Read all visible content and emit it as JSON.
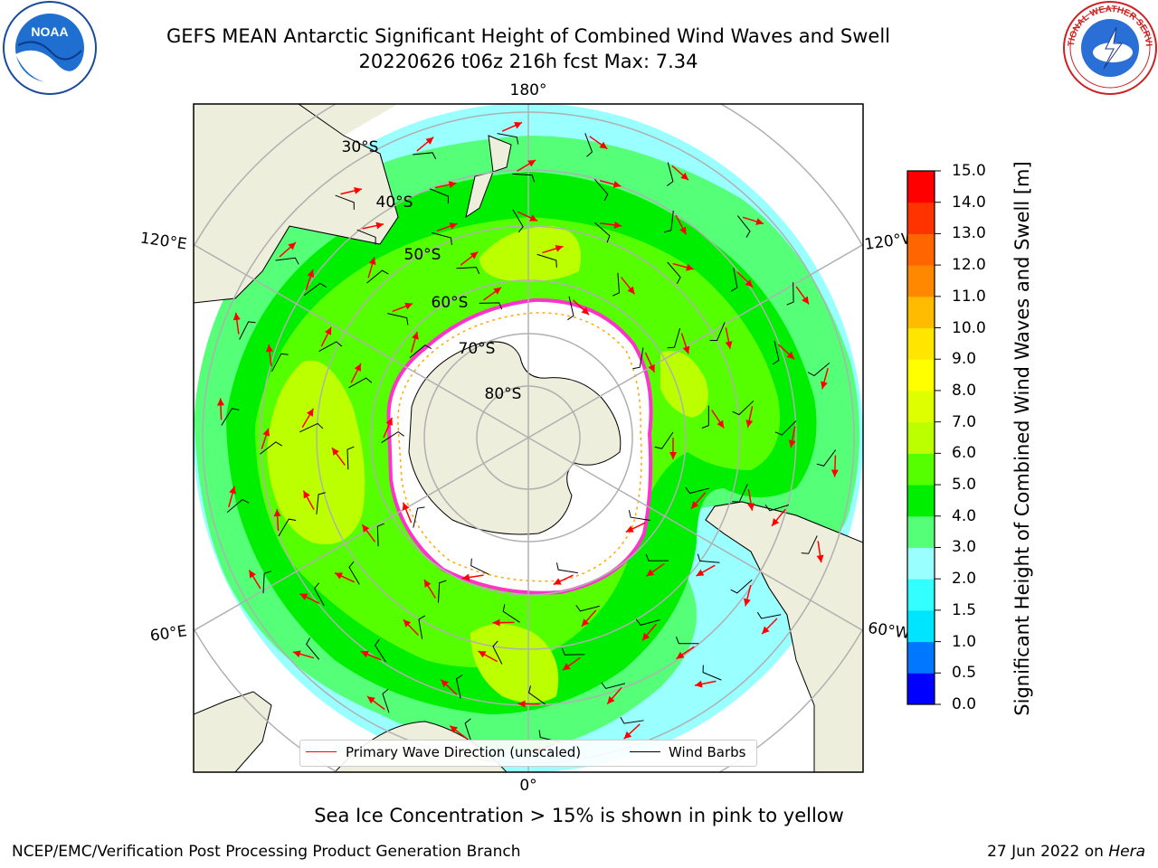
{
  "title_line1": "GEFS MEAN Antarctic Significant Height of Combined Wind Waves and Swell",
  "title_line2": "20220626 t06z 216h fcst   Max: 7.34",
  "logos": {
    "left": "noaa-logo",
    "right": "nws-logo",
    "left_text": "NOAA",
    "right_text": "NATIONAL WEATHER SERVICE"
  },
  "map": {
    "lon_labels": {
      "top": "180°",
      "bottom": "0°",
      "upper_left": "120°E",
      "upper_right": "120°W",
      "lower_left": "60°E",
      "lower_right": "60°W"
    },
    "lat_labels": [
      "30°S",
      "40°S",
      "50°S",
      "60°S",
      "70°S",
      "80°S"
    ],
    "colors": {
      "land": "#eeeedc",
      "ice_edge": "#ff33cc",
      "ice_inner": "#ffaa00",
      "wave_arrow": "#ff0000",
      "wind_barb": "#000000"
    }
  },
  "legend": {
    "wave_label": "Primary Wave Direction (unscaled)",
    "wind_label": "Wind Barbs"
  },
  "colorbar": {
    "label": "Significant Height of Combined Wind Waves and Swell [m]",
    "ticks": [
      "0.0",
      "0.5",
      "1.0",
      "1.5",
      "2.0",
      "3.0",
      "4.0",
      "5.0",
      "6.0",
      "7.0",
      "8.0",
      "9.0",
      "10.0",
      "11.0",
      "12.0",
      "13.0",
      "14.0",
      "15.0"
    ],
    "colors": [
      "#0000ff",
      "#0077ff",
      "#00e5ff",
      "#33ffff",
      "#99ffff",
      "#55ff77",
      "#00ee00",
      "#55ff00",
      "#bbff00",
      "#ddff00",
      "#ffff00",
      "#ffe600",
      "#ffbb00",
      "#ff8800",
      "#ff6600",
      "#ff3300",
      "#ff0000"
    ]
  },
  "subtitle": "Sea Ice Concentration > 15% is shown in pink to yellow",
  "footer_left": "NCEP/EMC/Verification Post Processing Product Generation Branch",
  "footer_date": "27 Jun 2022 on",
  "footer_host": "Hera"
}
